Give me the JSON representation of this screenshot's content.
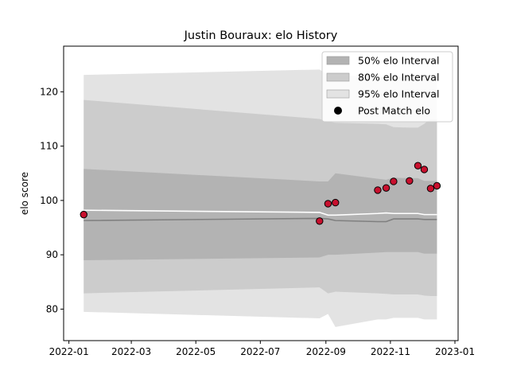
{
  "chart_data": {
    "type": "line",
    "title": "Justin Bouraux: elo History",
    "xlabel": "",
    "ylabel": "elo score",
    "x_ticks": [
      "2022-01",
      "2022-03",
      "2022-05",
      "2022-07",
      "2022-09",
      "2022-11",
      "2023-01"
    ],
    "y_ticks": [
      80,
      90,
      100,
      110,
      120
    ],
    "xlim": [
      "2021-12-27",
      "2023-01-04"
    ],
    "ylim": [
      74.2,
      128.4
    ],
    "grid": false,
    "legend_position": "top-right",
    "legend": [
      {
        "label": "50% elo Interval",
        "kind": "band",
        "color": "#b3b3b3"
      },
      {
        "label": "80% elo Interval",
        "kind": "band",
        "color": "#cccccc"
      },
      {
        "label": "95% elo Interval",
        "kind": "band",
        "color": "#e3e3e3"
      },
      {
        "label": "Post Match elo",
        "kind": "point",
        "color": "#000000"
      }
    ],
    "dates": [
      "2022-01-15",
      "2022-08-26",
      "2022-09-03",
      "2022-09-10",
      "2022-10-20",
      "2022-10-28",
      "2022-11-04",
      "2022-11-19",
      "2022-11-27",
      "2022-12-03",
      "2022-12-09",
      "2022-12-15"
    ],
    "band_95": {
      "lower": [
        79.5,
        78.3,
        79.1,
        76.7,
        78.1,
        78.1,
        78.4,
        78.4,
        78.4,
        78.1,
        78.1,
        78.1
      ],
      "upper": [
        123.1,
        124.1,
        123.1,
        123.1,
        122.7,
        122.7,
        122.7,
        122.7,
        122.7,
        122.7,
        122.7,
        122.7
      ]
    },
    "band_80": {
      "lower": [
        82.9,
        84.0,
        82.9,
        83.2,
        82.9,
        82.8,
        82.7,
        82.7,
        82.7,
        82.5,
        82.4,
        82.4
      ],
      "upper": [
        118.5,
        115.0,
        114.5,
        114.3,
        114.1,
        114.0,
        113.5,
        113.4,
        113.4,
        114.1,
        115.0,
        115.0
      ]
    },
    "band_50": {
      "lower": [
        89.0,
        89.5,
        90.0,
        90.0,
        90.4,
        90.5,
        90.5,
        90.5,
        90.5,
        90.2,
        90.2,
        90.2
      ],
      "upper": [
        105.8,
        103.5,
        103.5,
        105.0,
        104.0,
        103.8,
        104.2,
        104.1,
        104.1,
        103.6,
        103.6,
        103.6
      ]
    },
    "median": [
      96.3,
      96.7,
      96.6,
      96.3,
      96.1,
      96.1,
      96.6,
      96.6,
      96.6,
      96.5,
      96.5,
      96.5
    ],
    "mean_line": [
      98.2,
      97.8,
      97.3,
      97.3,
      97.6,
      97.7,
      97.6,
      97.6,
      97.6,
      97.4,
      97.4,
      97.4
    ],
    "series": [
      {
        "name": "Post Match elo",
        "color": "#c8102e",
        "points": [
          {
            "x": "2022-01-15",
            "y": 97.4
          },
          {
            "x": "2022-08-26",
            "y": 96.2
          },
          {
            "x": "2022-09-03",
            "y": 99.4
          },
          {
            "x": "2022-09-10",
            "y": 99.6
          },
          {
            "x": "2022-10-20",
            "y": 101.9
          },
          {
            "x": "2022-10-28",
            "y": 102.3
          },
          {
            "x": "2022-11-04",
            "y": 103.5
          },
          {
            "x": "2022-11-19",
            "y": 103.6
          },
          {
            "x": "2022-11-27",
            "y": 106.4
          },
          {
            "x": "2022-12-03",
            "y": 105.7
          },
          {
            "x": "2022-12-09",
            "y": 102.2
          },
          {
            "x": "2022-12-15",
            "y": 102.7
          }
        ]
      }
    ]
  }
}
